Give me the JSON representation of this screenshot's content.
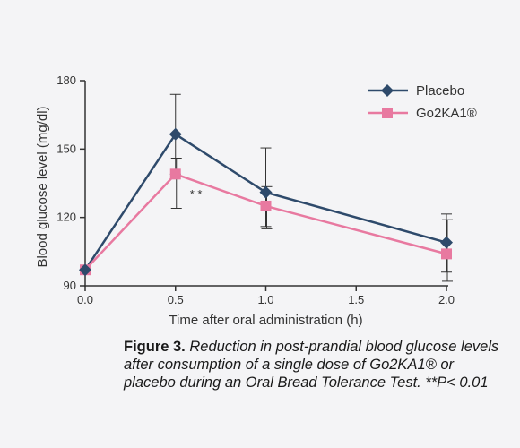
{
  "chart_data": {
    "type": "line",
    "xlabel": "Time after oral administration (h)",
    "ylabel": "Blood glucose level (mg/dl)",
    "xlim": [
      0,
      2.0
    ],
    "ylim": [
      90,
      180
    ],
    "x_ticks": [
      "0.0",
      "0.5",
      "1.0",
      "1.5",
      "2.0"
    ],
    "y_ticks": [
      "90",
      "120",
      "150",
      "180"
    ],
    "legend_position": "top-right",
    "grid": false,
    "x": [
      0,
      0.5,
      1.0,
      2.0
    ],
    "series": [
      {
        "name": "Placebo",
        "marker": "diamond",
        "color": "#2e4a6b",
        "values": [
          97,
          156.5,
          131,
          109
        ],
        "error_upper": [
          null,
          174,
          150.5,
          121.5
        ],
        "error_lower": [
          null,
          139,
          116,
          96
        ]
      },
      {
        "name": "Go2KA1®",
        "marker": "square",
        "color": "#e879a0",
        "values": [
          97,
          139,
          125,
          104
        ],
        "error_upper": [
          null,
          146,
          133.5,
          119
        ],
        "error_lower": [
          null,
          124,
          115,
          92
        ]
      }
    ],
    "annotations": [
      {
        "text": "* *",
        "x": 0.5,
        "y": 130
      }
    ]
  },
  "caption": {
    "label": "Figure 3.",
    "text": "Reduction in post-prandial blood glucose levels after consumption of a single dose of Go2KA1® or placebo during an Oral Bread Tolerance Test. **P< 0.01"
  }
}
